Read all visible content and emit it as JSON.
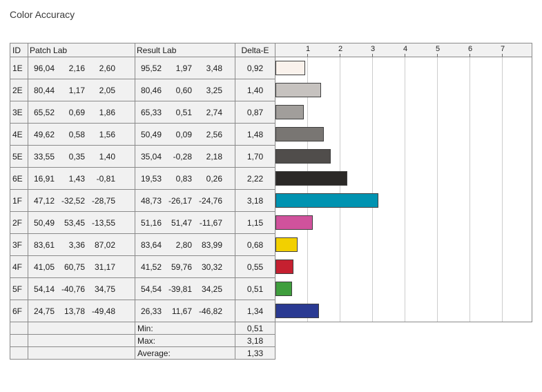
{
  "title": "Color Accuracy",
  "table": {
    "headers": {
      "id": "ID",
      "patch": "Patch Lab",
      "result": "Result Lab",
      "delta": "Delta-E"
    },
    "axis_ticks": [
      1,
      2,
      3,
      4,
      5,
      6,
      7
    ],
    "rows": [
      {
        "id": "1E",
        "patch": [
          "96,04",
          "2,16",
          "2,60"
        ],
        "result": [
          "95,52",
          "1,97",
          "3,48"
        ],
        "delta": "0,92",
        "delta_value": 0.92,
        "color": "#faf2ec"
      },
      {
        "id": "2E",
        "patch": [
          "80,44",
          "1,17",
          "2,05"
        ],
        "result": [
          "80,46",
          "0,60",
          "3,25"
        ],
        "delta": "1,40",
        "delta_value": 1.4,
        "color": "#c6c2bf"
      },
      {
        "id": "3E",
        "patch": [
          "65,52",
          "0,69",
          "1,86"
        ],
        "result": [
          "65,33",
          "0,51",
          "2,74"
        ],
        "delta": "0,87",
        "delta_value": 0.87,
        "color": "#a19e9b"
      },
      {
        "id": "4E",
        "patch": [
          "49,62",
          "0,58",
          "1,56"
        ],
        "result": [
          "50,49",
          "0,09",
          "2,56"
        ],
        "delta": "1,48",
        "delta_value": 1.48,
        "color": "#797673"
      },
      {
        "id": "5E",
        "patch": [
          "33,55",
          "0,35",
          "1,40"
        ],
        "result": [
          "35,04",
          "-0,28",
          "2,18"
        ],
        "delta": "1,70",
        "delta_value": 1.7,
        "color": "#504d4b"
      },
      {
        "id": "6E",
        "patch": [
          "16,91",
          "1,43",
          "-0,81"
        ],
        "result": [
          "19,53",
          "0,83",
          "0,26"
        ],
        "delta": "2,22",
        "delta_value": 2.22,
        "color": "#2b2927"
      },
      {
        "id": "1F",
        "patch": [
          "47,12",
          "-32,52",
          "-28,75"
        ],
        "result": [
          "48,73",
          "-26,17",
          "-24,76"
        ],
        "delta": "3,18",
        "delta_value": 3.18,
        "color": "#0093b1"
      },
      {
        "id": "2F",
        "patch": [
          "50,49",
          "53,45",
          "-13,55"
        ],
        "result": [
          "51,16",
          "51,47",
          "-11,67"
        ],
        "delta": "1,15",
        "delta_value": 1.15,
        "color": "#d0529c"
      },
      {
        "id": "3F",
        "patch": [
          "83,61",
          "3,36",
          "87,02"
        ],
        "result": [
          "83,64",
          "2,80",
          "83,99"
        ],
        "delta": "0,68",
        "delta_value": 0.68,
        "color": "#f2d000"
      },
      {
        "id": "4F",
        "patch": [
          "41,05",
          "60,75",
          "31,17"
        ],
        "result": [
          "41,52",
          "59,76",
          "30,32"
        ],
        "delta": "0,55",
        "delta_value": 0.55,
        "color": "#c52030"
      },
      {
        "id": "5F",
        "patch": [
          "54,14",
          "-40,76",
          "34,75"
        ],
        "result": [
          "54,54",
          "-39,81",
          "34,25"
        ],
        "delta": "0,51",
        "delta_value": 0.51,
        "color": "#3f9e3d"
      },
      {
        "id": "6F",
        "patch": [
          "24,75",
          "13,78",
          "-49,48"
        ],
        "result": [
          "26,33",
          "11,67",
          "-46,82"
        ],
        "delta": "1,34",
        "delta_value": 1.34,
        "color": "#2a3a92"
      }
    ],
    "summary": [
      {
        "label": "Min:",
        "value": "0,51"
      },
      {
        "label": "Max:",
        "value": "3,18"
      },
      {
        "label": "Average:",
        "value": "1,33"
      }
    ]
  },
  "chart_data": {
    "type": "bar",
    "orientation": "horizontal",
    "title": "Color Accuracy",
    "categories": [
      "1E",
      "2E",
      "3E",
      "4E",
      "5E",
      "6E",
      "1F",
      "2F",
      "3F",
      "4F",
      "5F",
      "6F"
    ],
    "values": [
      0.92,
      1.4,
      0.87,
      1.48,
      1.7,
      2.22,
      3.18,
      1.15,
      0.68,
      0.55,
      0.51,
      1.34
    ],
    "bar_colors": [
      "#faf2ec",
      "#c6c2bf",
      "#a19e9b",
      "#797673",
      "#504d4b",
      "#2b2927",
      "#0093b1",
      "#d0529c",
      "#f2d000",
      "#c52030",
      "#3f9e3d",
      "#2a3a92"
    ],
    "xlabel": "Delta-E",
    "xlim": [
      0,
      7.9
    ],
    "ticks": [
      1,
      2,
      3,
      4,
      5,
      6,
      7
    ],
    "grid": true,
    "legend": false,
    "summary": {
      "min": 0.51,
      "max": 3.18,
      "average": 1.33
    }
  }
}
